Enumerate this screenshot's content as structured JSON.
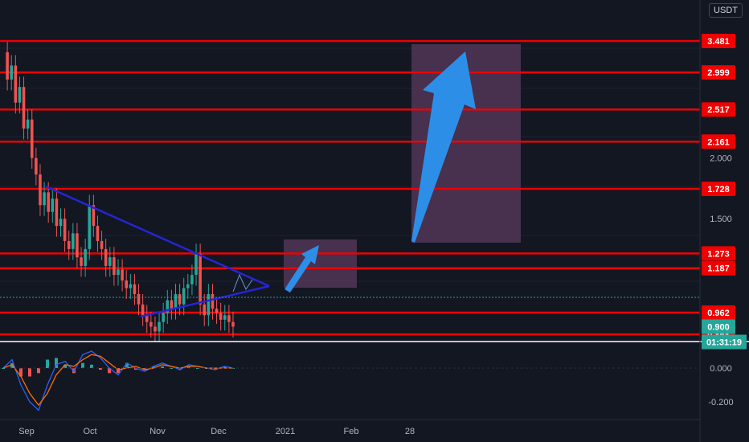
{
  "currency": "USDT",
  "colors": {
    "background": "#131722",
    "level_line": "#f00000",
    "trendline": "#2525d6",
    "arrow": "#2d8ee8",
    "box": "#5a3b5e",
    "up_candle": "#26a69a",
    "down_candle": "#ef5350",
    "current_price_bg": "#26a69a",
    "macd_line": "#2962ff",
    "signal_line": "#ff6d00"
  },
  "chart_data": [
    {
      "type": "line",
      "series_kind": "candlestick price chart",
      "scale": "log",
      "price_axis_ticks": [
        "2.000",
        "1.500"
      ],
      "time_axis_ticks": [
        "Sep",
        "Oct",
        "Nov",
        "Dec",
        "2021",
        "Feb",
        "28"
      ],
      "current_price": "0.900",
      "countdown": "01:31:19",
      "horizontal_levels": [
        "3.481",
        "2.999",
        "2.517",
        "2.161",
        "1.728",
        "1.273",
        "1.187",
        "0.962",
        "0.868"
      ],
      "series": [
        {
          "values": [
            3.3,
            2.9,
            3.1,
            2.6,
            2.8,
            2.3,
            2.4,
            2.0,
            1.85,
            1.6,
            1.7,
            1.55,
            1.65,
            1.45,
            1.5,
            1.35,
            1.3,
            1.4,
            1.25,
            1.2,
            1.3,
            1.6,
            1.45,
            1.35,
            1.3,
            1.2,
            1.25,
            1.15,
            1.18,
            1.12,
            1.08,
            1.1,
            1.05,
            1.0,
            0.95,
            0.92,
            0.9,
            0.88,
            0.92,
            0.96,
            1.02,
            0.98,
            1.05,
            1.0,
            1.08,
            1.1,
            1.15,
            1.27,
            1.0,
            0.95,
            1.05,
            0.98,
            0.96,
            0.93,
            0.95,
            0.92,
            0.9
          ]
        }
      ],
      "annotations": [
        "descending trendline",
        "ascending trendline",
        "projection box with arrow to 1.40",
        "projection box with arrow to 3.481"
      ]
    },
    {
      "type": "line",
      "series_kind": "oscillator",
      "yticks": [
        "0.000",
        "-0.200"
      ],
      "series": [
        {
          "values": [
            0.0,
            0.05,
            -0.1,
            -0.2,
            -0.25,
            -0.1,
            0.02,
            0.04,
            -0.02,
            0.08,
            0.1,
            0.06,
            0.0,
            -0.04,
            0.03,
            0.0,
            -0.02,
            0.01,
            0.03,
            0.01,
            -0.01,
            0.02,
            0.01,
            0.0,
            -0.01,
            0.01,
            0.0
          ]
        },
        {
          "values": [
            0.0,
            0.02,
            -0.05,
            -0.15,
            -0.22,
            -0.15,
            -0.04,
            0.02,
            0.01,
            0.05,
            0.08,
            0.07,
            0.03,
            -0.01,
            0.0,
            0.01,
            -0.01,
            0.0,
            0.02,
            0.01,
            0.0,
            0.01,
            0.01,
            0.0,
            0.0,
            0.0,
            0.0
          ]
        }
      ]
    }
  ]
}
